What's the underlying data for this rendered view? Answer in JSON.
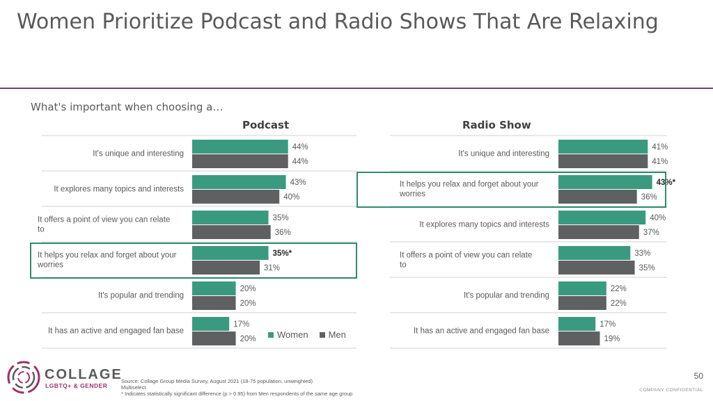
{
  "title": "Women Prioritize Podcast and Radio Shows That Are Relaxing",
  "subtitle": "What's important when choosing a…",
  "legend": {
    "women": "Women",
    "men": "Men"
  },
  "colors": {
    "women": "#3a9a80",
    "men": "#5f6062",
    "accent": "#7a3b7a",
    "highlight": "#2e8b6e"
  },
  "chart_data": [
    {
      "type": "bar",
      "title": "Podcast",
      "categories": [
        "It's unique and interesting",
        "It explores many topics and interests",
        "It offers a point of view you can relate to",
        "It helps you relax and forget about your worries",
        "It's popular and trending",
        "It has an active and engaged fan base"
      ],
      "series": [
        {
          "name": "Women",
          "values": [
            44,
            43,
            35,
            35,
            20,
            17
          ],
          "labels": [
            "44%",
            "43%",
            "35%",
            "35%*",
            "20%",
            "17%"
          ]
        },
        {
          "name": "Men",
          "values": [
            44,
            40,
            36,
            31,
            20,
            20
          ],
          "labels": [
            "44%",
            "40%",
            "36%",
            "31%",
            "20%",
            "20%"
          ]
        }
      ],
      "highlight_index": 3,
      "orientation": "horizontal",
      "xlim": [
        0,
        100
      ]
    },
    {
      "type": "bar",
      "title": "Radio Show",
      "categories": [
        "It's unique and interesting",
        "It helps you relax and forget about your worries",
        "It explores many topics and interests",
        "It offers a point of view you can relate to",
        "It's popular and trending",
        "It has an active and engaged fan base"
      ],
      "series": [
        {
          "name": "Women",
          "values": [
            41,
            43,
            40,
            33,
            22,
            17
          ],
          "labels": [
            "41%",
            "43%*",
            "40%",
            "33%",
            "22%",
            "17%"
          ]
        },
        {
          "name": "Men",
          "values": [
            41,
            36,
            37,
            35,
            22,
            19
          ],
          "labels": [
            "41%",
            "36%",
            "37%",
            "35%",
            "22%",
            "19%"
          ]
        }
      ],
      "highlight_index": 1,
      "orientation": "horizontal",
      "xlim": [
        0,
        100
      ]
    }
  ],
  "footer": {
    "source": "Source: Collage Group Media Survey, August 2021 (18-75 population, unweighted)",
    "multiselect": "Multiselect",
    "note": "* Indicates statistically significant difference (p > 0.95) from Men respondents of the same age group"
  },
  "page_number": "50",
  "confidential": "COMPANY CONFIDENTIAL",
  "logo": {
    "word": "COLLAGE",
    "sub": "LGBTQ+ & GENDER"
  }
}
